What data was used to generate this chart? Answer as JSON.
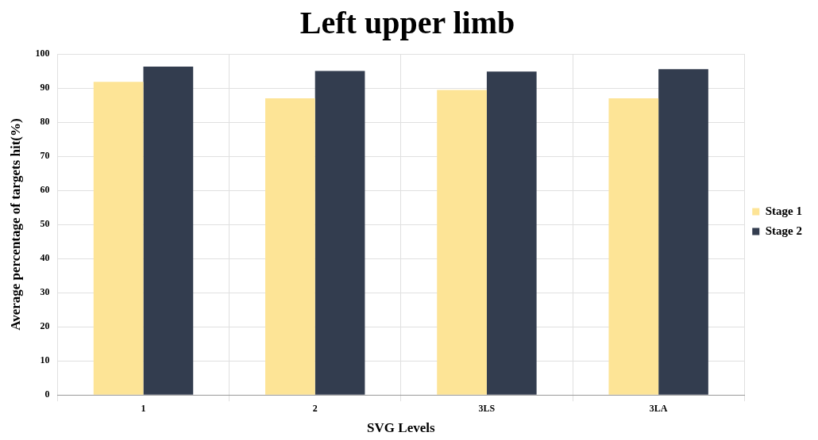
{
  "chart_data": {
    "type": "bar",
    "title": "Left upper limb",
    "xlabel": "SVG Levels",
    "ylabel": "Average percentage of targets hit(%)",
    "categories": [
      "1",
      "2",
      "3LS",
      "3LA"
    ],
    "series": [
      {
        "name": "Stage 1",
        "color": "#fde496",
        "values": [
          91.8,
          87.0,
          89.4,
          87.0
        ]
      },
      {
        "name": "Stage 2",
        "color": "#333d4f",
        "values": [
          96.3,
          95.0,
          94.8,
          95.5
        ]
      }
    ],
    "ylim": [
      0,
      100
    ],
    "yticks": [
      0,
      10,
      20,
      30,
      40,
      50,
      60,
      70,
      80,
      90,
      100
    ],
    "grid": true,
    "legend": "right"
  }
}
